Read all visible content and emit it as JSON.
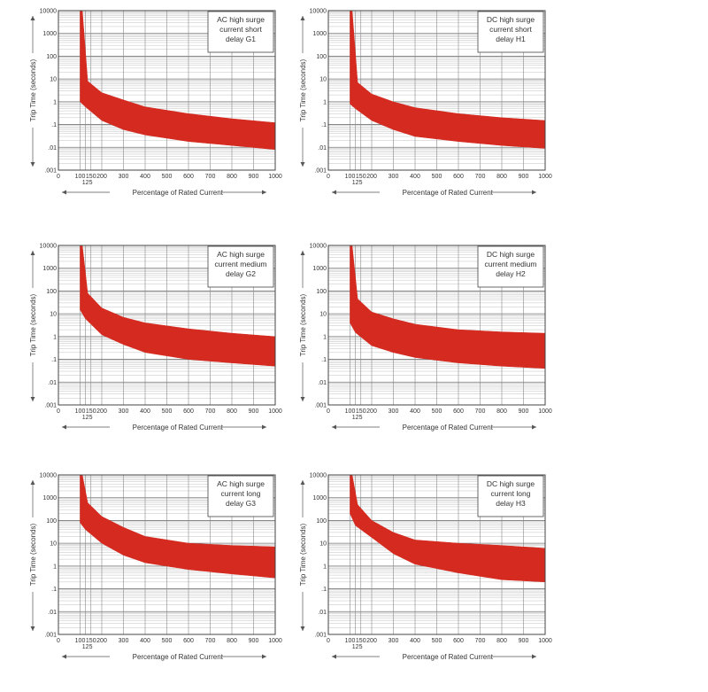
{
  "chart_data": [
    {
      "type": "area",
      "title": "AC high surge current short delay G1",
      "title_lines": [
        "AC high surge",
        "current short",
        "delay G1"
      ],
      "xlabel": "Percentage of Rated Current",
      "ylabel": "Trip Time (seconds)",
      "xlim": [
        0,
        1000
      ],
      "ylim": [
        0.001,
        10000
      ],
      "yscale": "log",
      "x_ticks": [
        "0",
        "100",
        "150",
        "200",
        "300",
        "400",
        "500",
        "600",
        "700",
        "800",
        "900",
        "1000"
      ],
      "x_ticks_extra": [
        "125"
      ],
      "y_ticks": [
        ".001",
        ".01",
        ".1",
        "1",
        "10",
        "100",
        "1000",
        "10000"
      ],
      "grid": true,
      "color": "#d42a20",
      "series": [
        {
          "role": "upper",
          "x": [
            110,
            110,
            135,
            200,
            300,
            400,
            600,
            800,
            1000
          ],
          "y": [
            10000,
            10000,
            8,
            2.5,
            1.2,
            0.6,
            0.3,
            0.18,
            0.12
          ]
        },
        {
          "role": "lower",
          "x": [
            100,
            100,
            125,
            200,
            300,
            400,
            600,
            800,
            1000
          ],
          "y": [
            10000,
            1,
            0.6,
            0.15,
            0.06,
            0.035,
            0.018,
            0.012,
            0.008
          ]
        }
      ]
    },
    {
      "type": "area",
      "title": "DC high surge current short delay H1",
      "title_lines": [
        "DC high surge",
        "current short",
        "delay H1"
      ],
      "xlabel": "Percentage of Rated Current",
      "ylabel": "Trip Time (seconds)",
      "xlim": [
        0,
        1000
      ],
      "ylim": [
        0.001,
        10000
      ],
      "yscale": "log",
      "x_ticks": [
        "0",
        "100",
        "150",
        "200",
        "300",
        "400",
        "500",
        "600",
        "700",
        "800",
        "900",
        "1000"
      ],
      "x_ticks_extra": [
        "125"
      ],
      "y_ticks": [
        ".001",
        ".01",
        ".1",
        "1",
        "10",
        "100",
        "1000",
        "10000"
      ],
      "grid": true,
      "color": "#d42a20",
      "series": [
        {
          "role": "upper",
          "x": [
            110,
            110,
            135,
            200,
            300,
            400,
            600,
            800,
            1000
          ],
          "y": [
            10000,
            10000,
            7,
            2.2,
            1.0,
            0.55,
            0.3,
            0.2,
            0.15
          ]
        },
        {
          "role": "lower",
          "x": [
            100,
            100,
            125,
            200,
            300,
            400,
            600,
            800,
            1000
          ],
          "y": [
            10000,
            0.8,
            0.5,
            0.15,
            0.06,
            0.03,
            0.018,
            0.012,
            0.009
          ]
        }
      ]
    },
    {
      "type": "area",
      "title": "AC high surge current medium delay G2",
      "title_lines": [
        "AC high surge",
        "current medium",
        "delay G2"
      ],
      "xlabel": "Percentage of Rated Current",
      "ylabel": "Trip Time (seconds)",
      "xlim": [
        0,
        1000
      ],
      "ylim": [
        0.001,
        10000
      ],
      "yscale": "log",
      "x_ticks": [
        "0",
        "100",
        "150",
        "200",
        "300",
        "400",
        "500",
        "600",
        "700",
        "800",
        "900",
        "1000"
      ],
      "x_ticks_extra": [
        "125"
      ],
      "y_ticks": [
        ".001",
        ".01",
        ".1",
        "1",
        "10",
        "100",
        "1000",
        "10000"
      ],
      "grid": true,
      "color": "#d42a20",
      "series": [
        {
          "role": "upper",
          "x": [
            110,
            110,
            135,
            200,
            300,
            400,
            600,
            800,
            1000
          ],
          "y": [
            10000,
            10000,
            80,
            18,
            7,
            4,
            2.2,
            1.4,
            1.0
          ]
        },
        {
          "role": "lower",
          "x": [
            100,
            100,
            125,
            200,
            300,
            400,
            600,
            800,
            1000
          ],
          "y": [
            10000,
            15,
            6,
            1.2,
            0.45,
            0.2,
            0.1,
            0.07,
            0.05
          ]
        }
      ]
    },
    {
      "type": "area",
      "title": "DC high surge current medium delay H2",
      "title_lines": [
        "DC high surge",
        "current medium",
        "delay H2"
      ],
      "xlabel": "Percentage of Rated Current",
      "ylabel": "Trip Time (seconds)",
      "xlim": [
        0,
        1000
      ],
      "ylim": [
        0.001,
        10000
      ],
      "yscale": "log",
      "x_ticks": [
        "0",
        "100",
        "150",
        "200",
        "300",
        "400",
        "500",
        "600",
        "700",
        "800",
        "900",
        "1000"
      ],
      "x_ticks_extra": [
        "125"
      ],
      "y_ticks": [
        ".001",
        ".01",
        ".1",
        "1",
        "10",
        "100",
        "1000",
        "10000"
      ],
      "grid": true,
      "color": "#d42a20",
      "series": [
        {
          "role": "upper",
          "x": [
            110,
            110,
            135,
            200,
            300,
            400,
            600,
            800,
            1000
          ],
          "y": [
            10000,
            10000,
            45,
            12,
            6,
            3.5,
            2.0,
            1.6,
            1.4
          ]
        },
        {
          "role": "lower",
          "x": [
            100,
            100,
            125,
            200,
            300,
            400,
            600,
            800,
            1000
          ],
          "y": [
            10000,
            4,
            1.5,
            0.4,
            0.2,
            0.12,
            0.07,
            0.05,
            0.04
          ]
        }
      ]
    },
    {
      "type": "area",
      "title": "AC high surge current long delay G3",
      "title_lines": [
        "AC high surge",
        "current long",
        "delay G3"
      ],
      "xlabel": "Percentage of Rated Current",
      "ylabel": "Trip Time (seconds)",
      "xlim": [
        0,
        1000
      ],
      "ylim": [
        0.001,
        10000
      ],
      "yscale": "log",
      "x_ticks": [
        "0",
        "100",
        "150",
        "200",
        "300",
        "400",
        "500",
        "600",
        "700",
        "800",
        "900",
        "1000"
      ],
      "x_ticks_extra": [
        "125"
      ],
      "y_ticks": [
        ".001",
        ".01",
        ".1",
        "1",
        "10",
        "100",
        "1000",
        "10000"
      ],
      "grid": true,
      "color": "#d42a20",
      "series": [
        {
          "role": "upper",
          "x": [
            110,
            110,
            135,
            200,
            300,
            400,
            600,
            800,
            1000
          ],
          "y": [
            10000,
            10000,
            600,
            150,
            50,
            20,
            10,
            8,
            7
          ]
        },
        {
          "role": "lower",
          "x": [
            100,
            100,
            125,
            200,
            300,
            400,
            600,
            800,
            1000
          ],
          "y": [
            10000,
            80,
            40,
            10,
            3,
            1.4,
            0.7,
            0.45,
            0.3
          ]
        }
      ]
    },
    {
      "type": "area",
      "title": "DC high surge current long delay H3",
      "title_lines": [
        "DC high surge",
        "current long",
        "delay H3"
      ],
      "xlabel": "Percentage of Rated Current",
      "ylabel": "Trip Time (seconds)",
      "xlim": [
        0,
        1000
      ],
      "ylim": [
        0.001,
        10000
      ],
      "yscale": "log",
      "x_ticks": [
        "0",
        "100",
        "150",
        "200",
        "300",
        "400",
        "500",
        "600",
        "700",
        "800",
        "900",
        "1000"
      ],
      "x_ticks_extra": [
        "125"
      ],
      "y_ticks": [
        ".001",
        ".01",
        ".1",
        "1",
        "10",
        "100",
        "1000",
        "10000"
      ],
      "grid": true,
      "color": "#d42a20",
      "series": [
        {
          "role": "upper",
          "x": [
            110,
            110,
            135,
            200,
            300,
            400,
            600,
            800,
            1000
          ],
          "y": [
            10000,
            10000,
            500,
            100,
            30,
            14,
            10,
            8,
            6
          ]
        },
        {
          "role": "lower",
          "x": [
            100,
            100,
            125,
            200,
            300,
            400,
            600,
            800,
            1000
          ],
          "y": [
            10000,
            200,
            60,
            18,
            3.5,
            1.2,
            0.5,
            0.25,
            0.2
          ]
        }
      ]
    }
  ]
}
